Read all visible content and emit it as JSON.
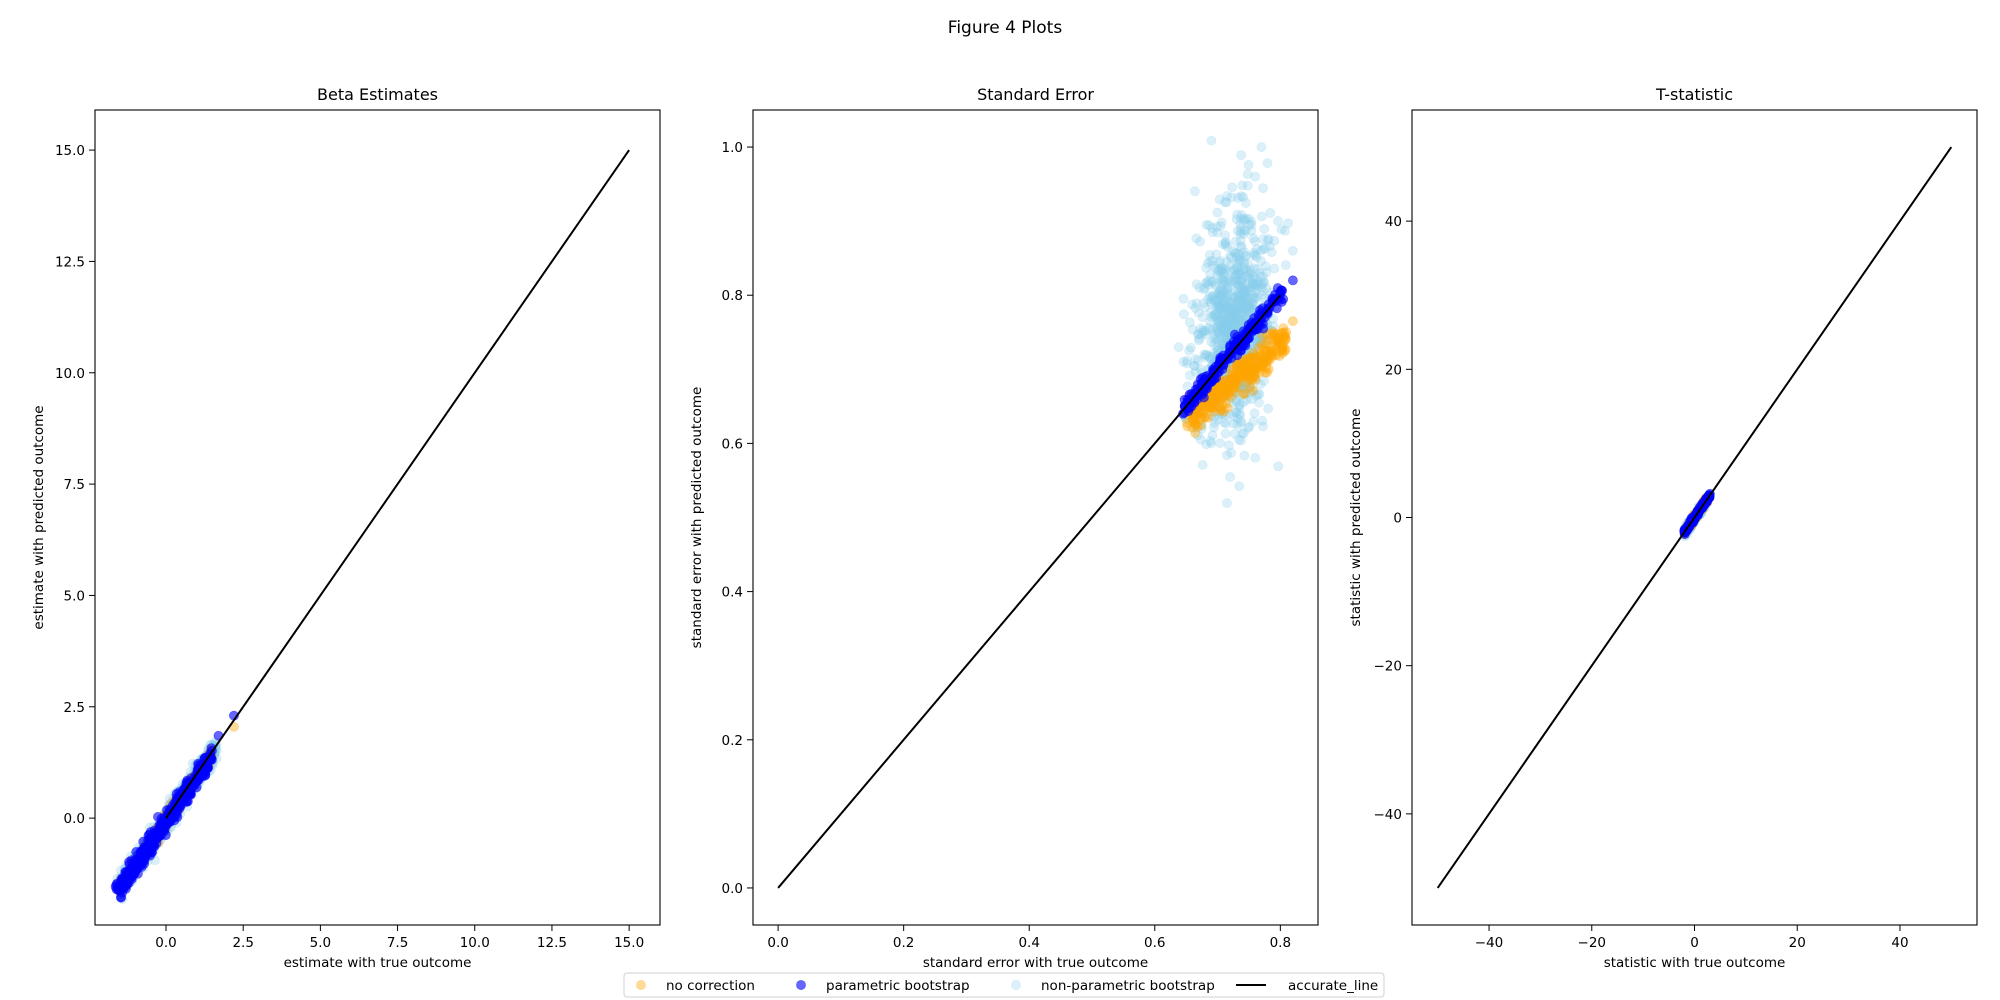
{
  "figure_title": "Figure 4 Plots",
  "legend": {
    "placement": "bottom-center",
    "entries": [
      {
        "label": "no correction",
        "kind": "marker",
        "color": "#ffa500",
        "alpha": 0.4
      },
      {
        "label": "parametric bootstrap",
        "kind": "marker",
        "color": "#0000ff",
        "alpha": 0.6
      },
      {
        "label": "non-parametric bootstrap",
        "kind": "marker",
        "color": "#87ceeb",
        "alpha": 0.3
      },
      {
        "label": "accurate_line",
        "kind": "line",
        "color": "#000000"
      }
    ]
  },
  "chart_data": [
    {
      "type": "scatter",
      "title": "Beta Estimates",
      "xlabel": "estimate with true outcome",
      "ylabel": "estimate with predicted outcome",
      "xlim": [
        -2.3,
        16.0
      ],
      "ylim": [
        -2.4,
        15.9
      ],
      "xticks": [
        0.0,
        2.5,
        5.0,
        7.5,
        10.0,
        12.5,
        15.0
      ],
      "yticks": [
        0.0,
        2.5,
        5.0,
        7.5,
        10.0,
        12.5,
        15.0
      ],
      "tick_decimals": 1,
      "grid": false,
      "accurate_line": [
        [
          0,
          0
        ],
        [
          15,
          15
        ]
      ],
      "series": [
        {
          "name": "non-parametric bootstrap",
          "cloud": {
            "type": "linear",
            "x_range": [
              -1.5,
              1.6
            ],
            "slope": 1.0,
            "intercept": -0.05,
            "spread": 0.12,
            "n": 700
          }
        },
        {
          "name": "no correction",
          "cloud": {
            "type": "linear",
            "x_range": [
              -1.5,
              1.5
            ],
            "slope": 1.0,
            "intercept": -0.05,
            "spread": 0.08,
            "n": 250
          },
          "extra_points": [
            [
              2.2,
              2.05
            ]
          ]
        },
        {
          "name": "parametric bootstrap",
          "cloud": {
            "type": "linear",
            "x_range": [
              -1.6,
              1.5
            ],
            "slope": 1.0,
            "intercept": -0.08,
            "spread": 0.1,
            "n": 500
          },
          "extra_points": [
            [
              2.2,
              2.3
            ],
            [
              1.7,
              1.85
            ],
            [
              -1.6,
              -1.6
            ]
          ]
        }
      ]
    },
    {
      "type": "scatter",
      "title": "Standard Error",
      "xlabel": "standard error with true outcome",
      "ylabel": "standard error with predicted outcome",
      "xlim": [
        -0.04,
        0.86
      ],
      "ylim": [
        -0.05,
        1.05
      ],
      "xticks": [
        0.0,
        0.2,
        0.4,
        0.6,
        0.8
      ],
      "yticks": [
        0.0,
        0.2,
        0.4,
        0.6,
        0.8,
        1.0
      ],
      "tick_decimals": 1,
      "grid": false,
      "accurate_line": [
        [
          0,
          0
        ],
        [
          0.8,
          0.8
        ]
      ],
      "series": [
        {
          "name": "non-parametric bootstrap",
          "cloud": {
            "type": "ellipse",
            "center": [
              0.725,
              0.76
            ],
            "sx": 0.03,
            "sy": 0.075,
            "corr": 0.2,
            "n": 900
          },
          "extra_points": [
            [
              0.77,
              1.0
            ],
            [
              0.76,
              0.96
            ],
            [
              0.69,
              0.6
            ],
            [
              0.82,
              0.86
            ]
          ]
        },
        {
          "name": "no correction",
          "cloud": {
            "type": "linear",
            "x_range": [
              0.655,
              0.81
            ],
            "slope": 0.68,
            "intercept": 0.19,
            "spread": 0.012,
            "n": 320
          },
          "extra_points": [
            [
              0.82,
              0.765
            ],
            [
              0.66,
              0.63
            ]
          ]
        },
        {
          "name": "parametric bootstrap",
          "cloud": {
            "type": "linear",
            "x_range": [
              0.645,
              0.805
            ],
            "slope": 1.0,
            "intercept": 0.0,
            "spread": 0.006,
            "n": 220
          },
          "extra_points": [
            [
              0.82,
              0.82
            ],
            [
              0.645,
              0.64
            ]
          ]
        }
      ]
    },
    {
      "type": "scatter",
      "title": "T-statistic",
      "xlabel": "statistic with true outcome",
      "ylabel": "statistic with predicted outcome",
      "xlim": [
        -55,
        55
      ],
      "ylim": [
        -55,
        55
      ],
      "xticks": [
        -40,
        -20,
        0,
        20,
        40
      ],
      "yticks": [
        -40,
        -20,
        0,
        20,
        40
      ],
      "tick_decimals": 0,
      "grid": false,
      "accurate_line": [
        [
          -50,
          -50
        ],
        [
          50,
          50
        ]
      ],
      "series": [
        {
          "name": "non-parametric bootstrap",
          "cloud": {
            "type": "linear",
            "x_range": [
              -2.0,
              2.5
            ],
            "slope": 1.0,
            "intercept": -0.1,
            "spread": 0.25,
            "n": 400
          }
        },
        {
          "name": "no correction",
          "cloud": {
            "type": "linear",
            "x_range": [
              -2.0,
              2.5
            ],
            "slope": 1.0,
            "intercept": 0.0,
            "spread": 0.2,
            "n": 150
          }
        },
        {
          "name": "parametric bootstrap",
          "cloud": {
            "type": "linear",
            "x_range": [
              -2.0,
              3.0
            ],
            "slope": 1.0,
            "intercept": 0.0,
            "spread": 0.15,
            "n": 200
          },
          "extra_points": [
            [
              3.0,
              3.2
            ]
          ]
        }
      ]
    }
  ]
}
